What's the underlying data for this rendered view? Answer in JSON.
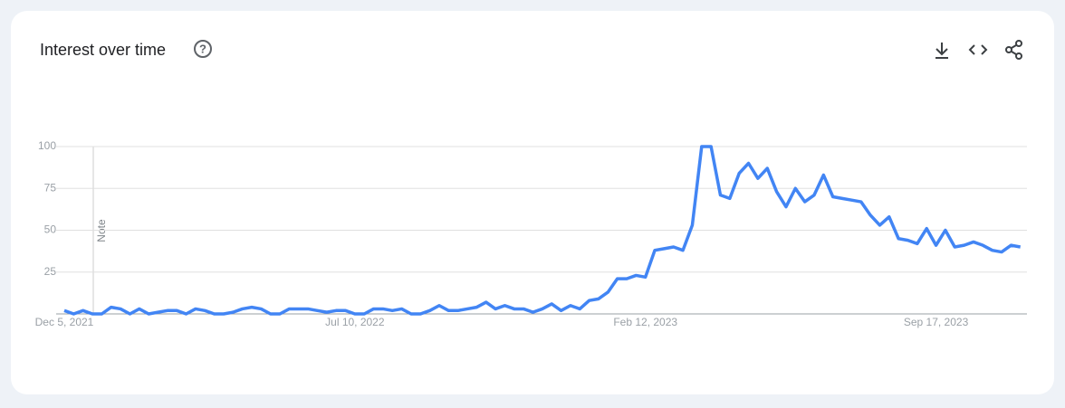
{
  "chart_data": {
    "type": "line",
    "title": "Interest over time",
    "annotation": "Note",
    "categories": [
      "Dec 5, 2021",
      null,
      null,
      null,
      null,
      null,
      null,
      null,
      null,
      null,
      null,
      null,
      null,
      null,
      null,
      null,
      null,
      null,
      null,
      null,
      null,
      null,
      null,
      null,
      null,
      null,
      null,
      null,
      null,
      null,
      null,
      "Jul 10, 2022",
      null,
      null,
      null,
      null,
      null,
      null,
      null,
      null,
      null,
      null,
      null,
      null,
      null,
      null,
      null,
      null,
      null,
      null,
      null,
      null,
      null,
      null,
      null,
      null,
      null,
      null,
      null,
      null,
      null,
      null,
      "Feb 12, 2023",
      null,
      null,
      null,
      null,
      null,
      null,
      null,
      null,
      null,
      null,
      null,
      null,
      null,
      null,
      null,
      null,
      null,
      null,
      null,
      null,
      null,
      null,
      null,
      null,
      null,
      null,
      null,
      null,
      null,
      null,
      "Sep 17, 2023",
      null,
      null,
      null,
      null,
      null,
      null,
      null,
      null,
      null
    ],
    "values": [
      2,
      0,
      2,
      0,
      0,
      4,
      3,
      0,
      3,
      0,
      1,
      2,
      2,
      0,
      3,
      2,
      0,
      0,
      1,
      3,
      4,
      3,
      0,
      0,
      3,
      3,
      3,
      2,
      1,
      2,
      2,
      0,
      0,
      3,
      3,
      2,
      3,
      0,
      0,
      2,
      5,
      2,
      2,
      3,
      4,
      7,
      3,
      5,
      3,
      3,
      1,
      3,
      6,
      2,
      5,
      3,
      8,
      9,
      13,
      21,
      21,
      23,
      22,
      38,
      39,
      40,
      38,
      53,
      100,
      100,
      71,
      69,
      84,
      90,
      81,
      87,
      73,
      64,
      75,
      67,
      71,
      83,
      70,
      69,
      68,
      67,
      59,
      53,
      58,
      45,
      44,
      42,
      51,
      41,
      50,
      40,
      41,
      43,
      41,
      38,
      37,
      41,
      40
    ],
    "color": "#4285f4",
    "ylim": [
      0,
      100
    ],
    "yticks": [
      25,
      50,
      75,
      100
    ],
    "grid": true
  }
}
